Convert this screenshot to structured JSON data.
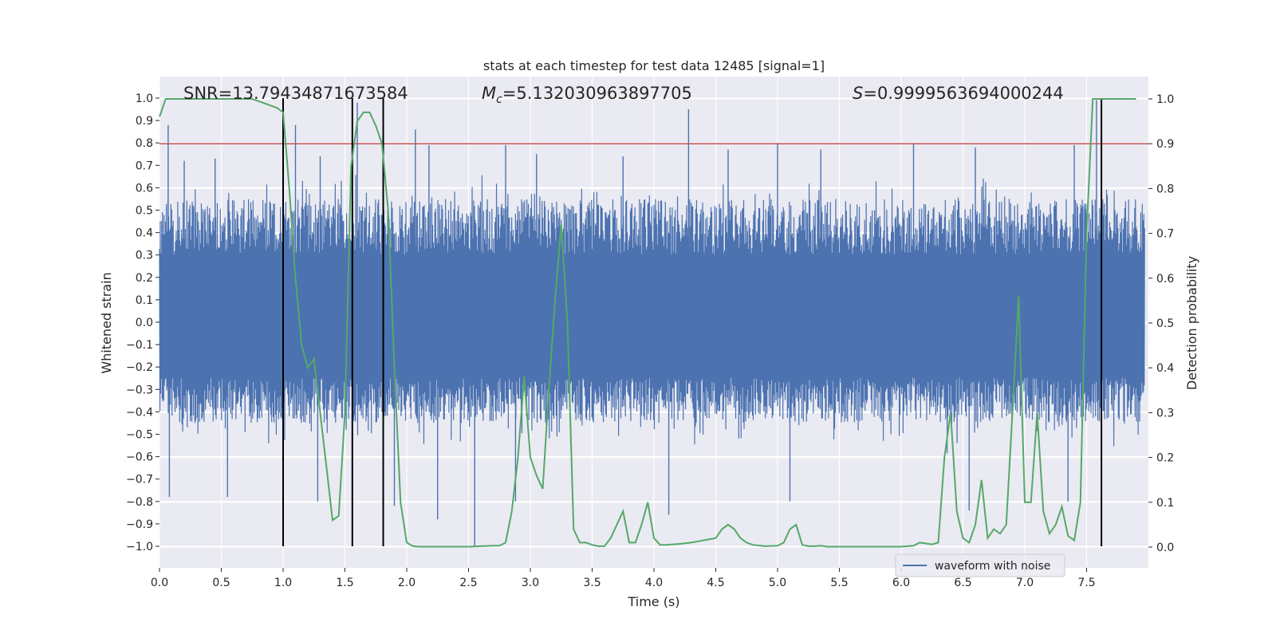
{
  "chart_data": {
    "type": "line",
    "title": "stats at each timestep for test data 12485 [signal=1]",
    "xlabel": "Time (s)",
    "ylabel_left": "Whitened strain",
    "ylabel_right": "Detection probability",
    "xlim": [
      0,
      8
    ],
    "ylim_left": [
      -1.1,
      1.1
    ],
    "ylim_right": [
      0,
      1.0
    ],
    "x_ticks": [
      0.0,
      0.5,
      1.0,
      1.5,
      2.0,
      2.5,
      3.0,
      3.5,
      4.0,
      4.5,
      5.0,
      5.5,
      6.0,
      6.5,
      7.0,
      7.5
    ],
    "y_ticks_left": [
      -1.0,
      -0.9,
      -0.8,
      -0.7,
      -0.6,
      -0.5,
      -0.4,
      -0.3,
      -0.2,
      -0.1,
      0.0,
      0.1,
      0.2,
      0.3,
      0.4,
      0.5,
      0.6,
      0.7,
      0.8,
      0.9,
      1.0
    ],
    "y_ticks_right": [
      0.0,
      0.1,
      0.2,
      0.3,
      0.4,
      0.5,
      0.6,
      0.7,
      0.8,
      0.9,
      1.0
    ],
    "grid": true,
    "annotations": {
      "snr": "SNR=13.79434871673584",
      "mc_symbol": "M",
      "mc_sub": "c",
      "mc_value": "=5.132030963897705",
      "s_symbol": "S",
      "s_value": "=0.9999563694000244"
    },
    "threshold_right": 0.9,
    "vertical_lines_x": [
      1.0,
      1.56,
      1.81,
      7.62
    ],
    "legend": {
      "entries": [
        "waveform with noise"
      ],
      "position": "lower-right"
    },
    "colors": {
      "waveform": "#4c72b0",
      "probability": "#55a868",
      "threshold": "#c44e52",
      "vlines": "#000000",
      "axes_bg": "#eaeaf2",
      "grid": "#ffffff"
    },
    "waveform": {
      "name": "waveform with noise",
      "axis": "left",
      "description_free": true,
      "envelope_typical": [
        -0.45,
        0.55
      ],
      "peaks": [
        {
          "x": 0.07,
          "y": 0.88
        },
        {
          "x": 0.2,
          "y": 0.72
        },
        {
          "x": 0.45,
          "y": 0.73
        },
        {
          "x": 1.1,
          "y": 0.88
        },
        {
          "x": 1.3,
          "y": 0.74
        },
        {
          "x": 1.56,
          "y": 0.81
        },
        {
          "x": 1.6,
          "y": 0.98
        },
        {
          "x": 2.07,
          "y": 0.86
        },
        {
          "x": 2.18,
          "y": 0.79
        },
        {
          "x": 2.8,
          "y": 0.79
        },
        {
          "x": 3.05,
          "y": 0.75
        },
        {
          "x": 3.75,
          "y": 0.74
        },
        {
          "x": 4.28,
          "y": 0.95
        },
        {
          "x": 4.6,
          "y": 0.77
        },
        {
          "x": 5.0,
          "y": 0.8
        },
        {
          "x": 5.35,
          "y": 0.77
        },
        {
          "x": 6.1,
          "y": 0.8
        },
        {
          "x": 6.6,
          "y": 0.78
        },
        {
          "x": 7.4,
          "y": 0.79
        },
        {
          "x": 7.58,
          "y": 0.99
        },
        {
          "x": 0.08,
          "y": -0.78
        },
        {
          "x": 0.55,
          "y": -0.78
        },
        {
          "x": 1.28,
          "y": -0.8
        },
        {
          "x": 1.9,
          "y": -0.82
        },
        {
          "x": 2.25,
          "y": -0.88
        },
        {
          "x": 2.55,
          "y": -1.0
        },
        {
          "x": 2.88,
          "y": -0.8
        },
        {
          "x": 4.12,
          "y": -0.86
        },
        {
          "x": 5.1,
          "y": -0.8
        },
        {
          "x": 6.55,
          "y": -0.84
        },
        {
          "x": 7.35,
          "y": -0.8
        }
      ]
    },
    "probability": {
      "name": "Detection probability",
      "axis": "right",
      "x": [
        0.0,
        0.05,
        0.1,
        0.2,
        0.3,
        0.4,
        0.5,
        0.6,
        0.7,
        0.75,
        0.8,
        0.85,
        0.9,
        0.95,
        1.0,
        1.05,
        1.1,
        1.15,
        1.2,
        1.25,
        1.3,
        1.35,
        1.4,
        1.45,
        1.5,
        1.55,
        1.6,
        1.65,
        1.7,
        1.75,
        1.8,
        1.85,
        1.9,
        1.95,
        2.0,
        2.05,
        2.1,
        2.15,
        2.2,
        2.3,
        2.4,
        2.5,
        2.6,
        2.7,
        2.75,
        2.8,
        2.85,
        2.9,
        2.95,
        3.0,
        3.05,
        3.1,
        3.15,
        3.2,
        3.25,
        3.3,
        3.35,
        3.4,
        3.45,
        3.5,
        3.55,
        3.6,
        3.65,
        3.7,
        3.75,
        3.8,
        3.85,
        3.9,
        3.95,
        4.0,
        4.05,
        4.1,
        4.15,
        4.2,
        4.3,
        4.4,
        4.5,
        4.55,
        4.6,
        4.65,
        4.7,
        4.75,
        4.8,
        4.9,
        5.0,
        5.05,
        5.1,
        5.15,
        5.2,
        5.25,
        5.3,
        5.35,
        5.4,
        5.5,
        5.6,
        5.7,
        5.8,
        5.9,
        6.0,
        6.1,
        6.15,
        6.2,
        6.25,
        6.3,
        6.35,
        6.4,
        6.45,
        6.5,
        6.55,
        6.6,
        6.65,
        6.7,
        6.75,
        6.8,
        6.85,
        6.9,
        6.95,
        7.0,
        7.05,
        7.1,
        7.15,
        7.2,
        7.25,
        7.3,
        7.35,
        7.4,
        7.45,
        7.5,
        7.55,
        7.6,
        7.65,
        7.7,
        7.8,
        7.9
      ],
      "y": [
        0.96,
        1.0,
        1.0,
        1.0,
        1.0,
        1.0,
        1.0,
        1.0,
        1.0,
        1.0,
        0.995,
        0.99,
        0.985,
        0.98,
        0.97,
        0.8,
        0.6,
        0.45,
        0.4,
        0.42,
        0.3,
        0.18,
        0.06,
        0.07,
        0.3,
        0.85,
        0.95,
        0.97,
        0.97,
        0.94,
        0.9,
        0.75,
        0.4,
        0.1,
        0.01,
        0.002,
        0.001,
        0.001,
        0.001,
        0.001,
        0.001,
        0.001,
        0.002,
        0.003,
        0.003,
        0.01,
        0.08,
        0.2,
        0.38,
        0.2,
        0.16,
        0.13,
        0.35,
        0.55,
        0.72,
        0.5,
        0.04,
        0.01,
        0.01,
        0.005,
        0.002,
        0.002,
        0.02,
        0.05,
        0.08,
        0.01,
        0.01,
        0.05,
        0.1,
        0.02,
        0.005,
        0.005,
        0.006,
        0.007,
        0.01,
        0.015,
        0.02,
        0.04,
        0.05,
        0.04,
        0.02,
        0.01,
        0.005,
        0.002,
        0.003,
        0.01,
        0.04,
        0.05,
        0.005,
        0.002,
        0.002,
        0.003,
        0.001,
        0.001,
        0.001,
        0.001,
        0.001,
        0.001,
        0.001,
        0.003,
        0.01,
        0.008,
        0.006,
        0.01,
        0.2,
        0.3,
        0.08,
        0.02,
        0.01,
        0.05,
        0.15,
        0.02,
        0.04,
        0.03,
        0.05,
        0.3,
        0.56,
        0.1,
        0.1,
        0.3,
        0.08,
        0.03,
        0.05,
        0.09,
        0.025,
        0.015,
        0.1,
        0.7,
        1.0,
        1.0,
        1.0,
        1.0,
        1.0,
        1.0
      ]
    }
  }
}
